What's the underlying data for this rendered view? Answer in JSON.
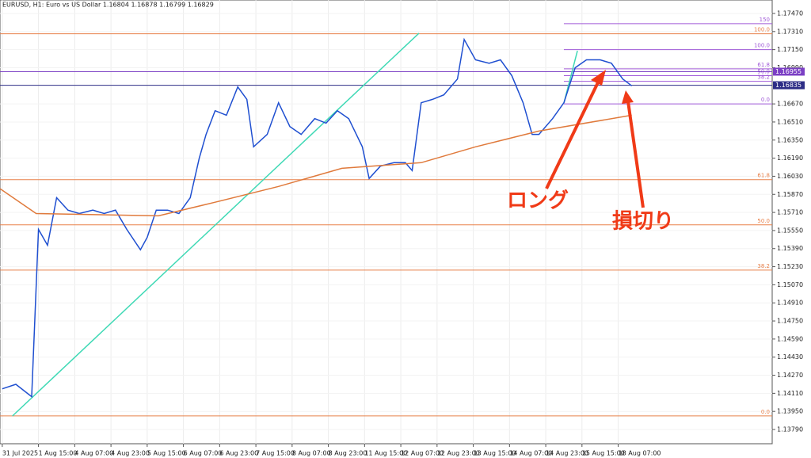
{
  "chart_data": {
    "type": "line",
    "title": "EURUSD, H1:  Euro vs US Dollar  1.16804 1.16878 1.16799 1.16829",
    "xlim": [
      -1,
      340
    ],
    "xticks": [
      {
        "value": 0,
        "label": "31 Jul 2025"
      },
      {
        "value": 16,
        "label": "1 Aug 15:00"
      },
      {
        "value": 32,
        "label": "4 Aug 07:00"
      },
      {
        "value": 48,
        "label": "4 Aug 23:00"
      },
      {
        "value": 64,
        "label": "5 Aug 15:00"
      },
      {
        "value": 80,
        "label": "6 Aug 07:00"
      },
      {
        "value": 96,
        "label": "6 Aug 23:00"
      },
      {
        "value": 112,
        "label": "7 Aug 15:00"
      },
      {
        "value": 128,
        "label": "8 Aug 07:00"
      },
      {
        "value": 144,
        "label": "8 Aug 23:00"
      },
      {
        "value": 160,
        "label": "11 Aug 15:00"
      },
      {
        "value": 176,
        "label": "12 Aug 07:00"
      },
      {
        "value": 192,
        "label": "12 Aug 23:00"
      },
      {
        "value": 208,
        "label": "13 Aug 15:00"
      },
      {
        "value": 224,
        "label": "14 Aug 07:00"
      },
      {
        "value": 240,
        "label": "14 Aug 23:00"
      },
      {
        "value": 256,
        "label": "15 Aug 15:00"
      },
      {
        "value": 272,
        "label": "18 Aug 07:00"
      }
    ],
    "ylim": [
      1.13664,
      1.17589
    ],
    "yticks": [
      {
        "value": 1.1747,
        "label": "1.17470"
      },
      {
        "value": 1.1731,
        "label": "1.17310"
      },
      {
        "value": 1.1715,
        "label": "1.17150"
      },
      {
        "value": 1.1699,
        "label": "1.16990"
      },
      {
        "value": 1.1667,
        "label": "1.16670"
      },
      {
        "value": 1.1651,
        "label": "1.16510"
      },
      {
        "value": 1.1635,
        "label": "1.16350"
      },
      {
        "value": 1.1619,
        "label": "1.16190"
      },
      {
        "value": 1.1603,
        "label": "1.16030"
      },
      {
        "value": 1.1587,
        "label": "1.15870"
      },
      {
        "value": 1.1571,
        "label": "1.15710"
      },
      {
        "value": 1.1555,
        "label": "1.15550"
      },
      {
        "value": 1.1539,
        "label": "1.15390"
      },
      {
        "value": 1.1523,
        "label": "1.15230"
      },
      {
        "value": 1.1507,
        "label": "1.15070"
      },
      {
        "value": 1.1491,
        "label": "1.14910"
      },
      {
        "value": 1.1475,
        "label": "1.14750"
      },
      {
        "value": 1.1459,
        "label": "1.14590"
      },
      {
        "value": 1.1443,
        "label": "1.14430"
      },
      {
        "value": 1.1427,
        "label": "1.14270"
      },
      {
        "value": 1.1411,
        "label": "1.14110"
      },
      {
        "value": 1.1395,
        "label": "1.13950"
      },
      {
        "value": 1.1379,
        "label": "1.13790"
      }
    ],
    "grid": true,
    "series": [
      {
        "color": "#1f4fd0",
        "x": [
          0,
          6,
          13,
          16,
          20,
          24,
          29,
          34,
          40,
          45,
          50,
          55,
          61,
          64,
          68,
          73,
          78,
          83,
          87,
          90,
          94,
          99,
          104,
          108,
          111,
          117,
          122,
          127,
          132,
          138,
          143,
          148,
          153,
          159,
          162,
          167,
          173,
          178,
          181,
          185,
          190,
          195,
          201,
          204,
          209,
          215,
          220,
          225,
          230,
          234,
          237,
          243,
          248,
          253,
          258,
          264,
          269,
          274,
          278
        ],
        "values": [
          1.1415,
          1.1419,
          1.1408,
          1.1556,
          1.1542,
          1.1584,
          1.1573,
          1.157,
          1.1573,
          1.157,
          1.1573,
          1.1556,
          1.1538,
          1.1549,
          1.1573,
          1.1573,
          1.157,
          1.1584,
          1.1619,
          1.164,
          1.1661,
          1.1657,
          1.1682,
          1.1671,
          1.1629,
          1.164,
          1.1668,
          1.1647,
          1.164,
          1.1654,
          1.165,
          1.1661,
          1.1654,
          1.1629,
          1.1601,
          1.1612,
          1.1615,
          1.1615,
          1.1608,
          1.1668,
          1.1671,
          1.1675,
          1.1689,
          1.1724,
          1.1706,
          1.1703,
          1.1706,
          1.1692,
          1.1668,
          1.164,
          1.164,
          1.1654,
          1.1668,
          1.1699,
          1.1706,
          1.1706,
          1.1703,
          1.1689,
          1.1683
        ]
      },
      {
        "color": "#e07a3c",
        "x": [
          -1,
          15,
          69,
          94,
          122,
          150,
          185,
          209,
          237,
          278
        ],
        "values": [
          1.1592,
          1.157,
          1.1568,
          1.158,
          1.1594,
          1.161,
          1.1615,
          1.1629,
          1.1643,
          1.1657
        ]
      }
    ],
    "trendlines": [
      {
        "color": "#3fd9b5",
        "x": [
          4.5,
          184
        ],
        "values": [
          1.13909,
          1.17295
        ]
      },
      {
        "color": "#3fd9b5",
        "x": [
          248,
          254
        ],
        "values": [
          1.16678,
          1.1714
        ]
      }
    ],
    "fib_sets": [
      {
        "color": "#e8804a",
        "x_from": -1,
        "levels": [
          {
            "label": "100.0",
            "value": 1.1729
          },
          {
            "label": "61.8",
            "value": 1.16
          },
          {
            "label": "50.0",
            "value": 1.156
          },
          {
            "label": "38.2",
            "value": 1.152
          },
          {
            "label": "0.0",
            "value": 1.1391
          }
        ]
      },
      {
        "color": "#a05ad8",
        "x_from": 248,
        "levels": [
          {
            "label": "150",
            "value": 1.1738
          },
          {
            "label": "100.0",
            "value": 1.1715
          },
          {
            "label": "61.8",
            "value": 1.1698
          },
          {
            "label": "50.0",
            "value": 1.1692
          },
          {
            "label": "38.2",
            "value": 1.1687
          },
          {
            "label": "0.0",
            "value": 1.1667
          }
        ]
      }
    ],
    "price_lines": [
      {
        "value": 1.16955,
        "label": "1.16955",
        "color": "#7b3fc4"
      },
      {
        "value": 1.16835,
        "label": "1.16835",
        "color": "#2d2d86"
      }
    ],
    "annotations": [
      "ロング",
      "損切り"
    ]
  }
}
